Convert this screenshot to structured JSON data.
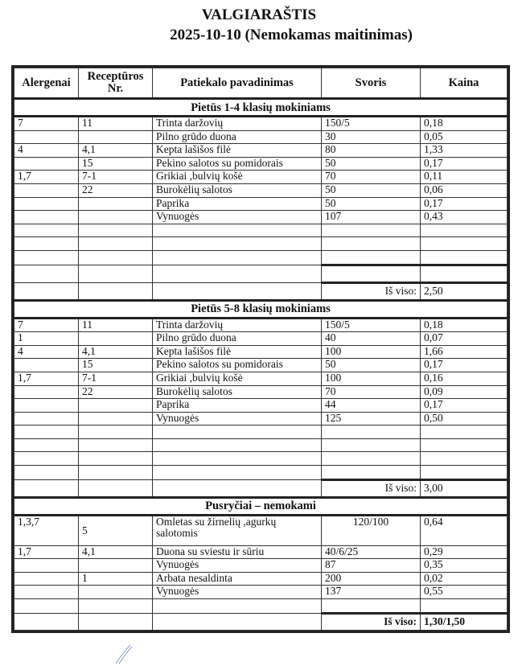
{
  "title": "VALGIARAŠTIS",
  "subtitle": "2025-10-10 (Nemokamas maitinimas)",
  "columns": [
    "Alergenai",
    "Receptūros Nr.",
    "Patiekalo pavadinimas",
    "Svoris",
    "Kaina"
  ],
  "sections": [
    {
      "name": "Pietūs 1-4 klasių mokiniams",
      "rows": [
        [
          "7",
          "11",
          "Trinta daržovių",
          "150/5",
          "0,18"
        ],
        [
          "",
          "",
          "Pilno grūdo duona",
          "30",
          "0,05"
        ],
        [
          "4",
          "4,1",
          "Kepta lašišos filė",
          "80",
          "1,33"
        ],
        [
          "",
          "15",
          "Pekino  salotos su pomidorais",
          "50",
          "0,17"
        ],
        [
          "1,7",
          "7-1",
          "Grikiai ,bulvių košė",
          "70",
          "0,11"
        ],
        [
          "",
          "22",
          "Burokėlių  salotos",
          "50",
          "0,06"
        ],
        [
          "",
          "",
          "Paprika",
          "50",
          "0,17"
        ],
        [
          "",
          "",
          "Vynuogės",
          "107",
          "0,43"
        ]
      ],
      "empty_rows": 3,
      "total_label": "Iš viso:",
      "total": "2,50"
    },
    {
      "name": "Pietūs 5-8 klasių mokiniams",
      "rows": [
        [
          "7",
          "11",
          "Trinta daržovių",
          "150/5",
          "0,18"
        ],
        [
          "1",
          "",
          "Pilno grūdo duona",
          "40",
          "0,07"
        ],
        [
          "4",
          "4,1",
          "Kepta lašišos filė",
          "100",
          "1,66"
        ],
        [
          "",
          "15",
          "Pekino  salotos su pomidorais",
          "50",
          "0,17"
        ],
        [
          "1,7",
          "7-1",
          "Grikiai ,bulvių košė",
          "100",
          "0,16"
        ],
        [
          "",
          "22",
          "Burokėlių  salotos",
          "70",
          "0,09"
        ],
        [
          "",
          "",
          "Paprika",
          "44",
          "0,17"
        ],
        [
          "",
          "",
          "Vynuogės",
          "125",
          "0,50"
        ]
      ],
      "empty_rows": 4,
      "total_label": "Iš viso:",
      "total": "3,00"
    },
    {
      "name": "Pusryčiai – nemokami",
      "rows": [
        [
          "1,3,7",
          "5",
          "Omletas su žirnelių ,agurkų salotomis",
          "120/100",
          "0,64"
        ],
        [
          "1,7",
          "4,1",
          "Duona su sviestu ir sūriu",
          "40/6/25",
          "0,29"
        ],
        [
          "",
          "",
          "Vynuogės",
          "87",
          "0,35"
        ],
        [
          "",
          "1",
          "Arbata nesaldinta",
          "200",
          "0,02"
        ],
        [
          "",
          "",
          "Vynuogės",
          "137",
          "0,55"
        ]
      ],
      "empty_rows": 1,
      "total_label": "Iš viso:",
      "total": "1,30/1,50"
    }
  ]
}
